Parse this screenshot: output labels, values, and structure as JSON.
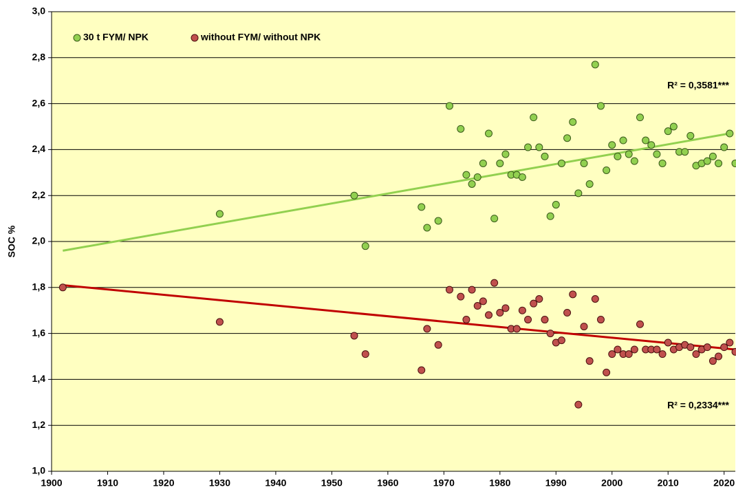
{
  "chart_data": {
    "type": "scatter",
    "ylabel": "SOC %",
    "xlim": [
      1900,
      2022
    ],
    "ylim": [
      1.0,
      3.0
    ],
    "xticks": [
      1900,
      1910,
      1920,
      1930,
      1940,
      1950,
      1960,
      1970,
      1980,
      1990,
      2000,
      2010,
      2020
    ],
    "yticks": [
      {
        "value": 1.0,
        "label": "1,0"
      },
      {
        "value": 1.2,
        "label": "1,2"
      },
      {
        "value": 1.4,
        "label": "1,4"
      },
      {
        "value": 1.6,
        "label": "1,6"
      },
      {
        "value": 1.8,
        "label": "1,8"
      },
      {
        "value": 2.0,
        "label": "2,0"
      },
      {
        "value": 2.2,
        "label": "2,2"
      },
      {
        "value": 2.4,
        "label": "2,4"
      },
      {
        "value": 2.6,
        "label": "2,6"
      },
      {
        "value": 2.8,
        "label": "2,8"
      },
      {
        "value": 3.0,
        "label": "3,0"
      }
    ],
    "grid": true,
    "legend": "top-left",
    "series": [
      {
        "name": "30 t FYM/ NPK",
        "color": "#92d050",
        "edge": "#3a5a1a",
        "trend_color": "#92d050",
        "x": [
          1930,
          1954,
          1956,
          1966,
          1967,
          1969,
          1971,
          1973,
          1974,
          1975,
          1976,
          1977,
          1978,
          1979,
          1980,
          1981,
          1982,
          1983,
          1984,
          1985,
          1986,
          1987,
          1988,
          1989,
          1990,
          1991,
          1992,
          1993,
          1994,
          1995,
          1996,
          1997,
          1998,
          1999,
          2000,
          2001,
          2002,
          2003,
          2004,
          2005,
          2006,
          2007,
          2008,
          2009,
          2010,
          2011,
          2012,
          2013,
          2014,
          2015,
          2016,
          2017,
          2018,
          2019,
          2020,
          2021,
          2022
        ],
        "values": [
          2.12,
          2.2,
          1.98,
          2.15,
          2.06,
          2.09,
          2.59,
          2.49,
          2.29,
          2.25,
          2.28,
          2.34,
          2.47,
          2.1,
          2.34,
          2.38,
          2.29,
          2.29,
          2.28,
          2.41,
          2.54,
          2.41,
          2.37,
          2.11,
          2.16,
          2.34,
          2.45,
          2.52,
          2.21,
          2.34,
          2.25,
          2.77,
          2.59,
          2.31,
          2.42,
          2.37,
          2.44,
          2.38,
          2.35,
          2.54,
          2.44,
          2.42,
          2.38,
          2.34,
          2.48,
          2.5,
          2.39,
          2.39,
          2.46,
          2.33,
          2.34,
          2.35,
          2.37,
          2.34,
          2.41,
          2.47,
          2.34
        ],
        "trend": {
          "x": [
            1902,
            2021
          ],
          "values": [
            1.96,
            2.47
          ]
        },
        "annotation": "R² = 0,3581***"
      },
      {
        "name": "without FYM/ without NPK",
        "color": "#c0504d",
        "edge": "#4a1010",
        "trend_color": "#c00000",
        "x": [
          1902,
          1930,
          1954,
          1956,
          1966,
          1967,
          1969,
          1971,
          1973,
          1974,
          1975,
          1976,
          1977,
          1978,
          1979,
          1980,
          1981,
          1982,
          1983,
          1984,
          1985,
          1986,
          1987,
          1988,
          1989,
          1990,
          1991,
          1992,
          1993,
          1994,
          1995,
          1996,
          1997,
          1998,
          1999,
          2000,
          2001,
          2002,
          2003,
          2004,
          2005,
          2006,
          2007,
          2008,
          2009,
          2010,
          2011,
          2012,
          2013,
          2014,
          2015,
          2016,
          2017,
          2018,
          2019,
          2020,
          2021,
          2022
        ],
        "values": [
          1.8,
          1.65,
          1.59,
          1.51,
          1.44,
          1.62,
          1.55,
          1.79,
          1.76,
          1.66,
          1.79,
          1.72,
          1.74,
          1.68,
          1.82,
          1.69,
          1.71,
          1.62,
          1.62,
          1.7,
          1.66,
          1.73,
          1.75,
          1.66,
          1.6,
          1.56,
          1.57,
          1.69,
          1.77,
          1.29,
          1.63,
          1.48,
          1.75,
          1.66,
          1.43,
          1.51,
          1.53,
          1.51,
          1.51,
          1.53,
          1.64,
          1.53,
          1.53,
          1.53,
          1.51,
          1.56,
          1.53,
          1.54,
          1.55,
          1.54,
          1.51,
          1.53,
          1.54,
          1.48,
          1.5,
          1.54,
          1.56,
          1.52
        ],
        "trend": {
          "x": [
            1902,
            2022
          ],
          "values": [
            1.81,
            1.53
          ]
        },
        "annotation": "R² = 0,2334***"
      }
    ]
  }
}
